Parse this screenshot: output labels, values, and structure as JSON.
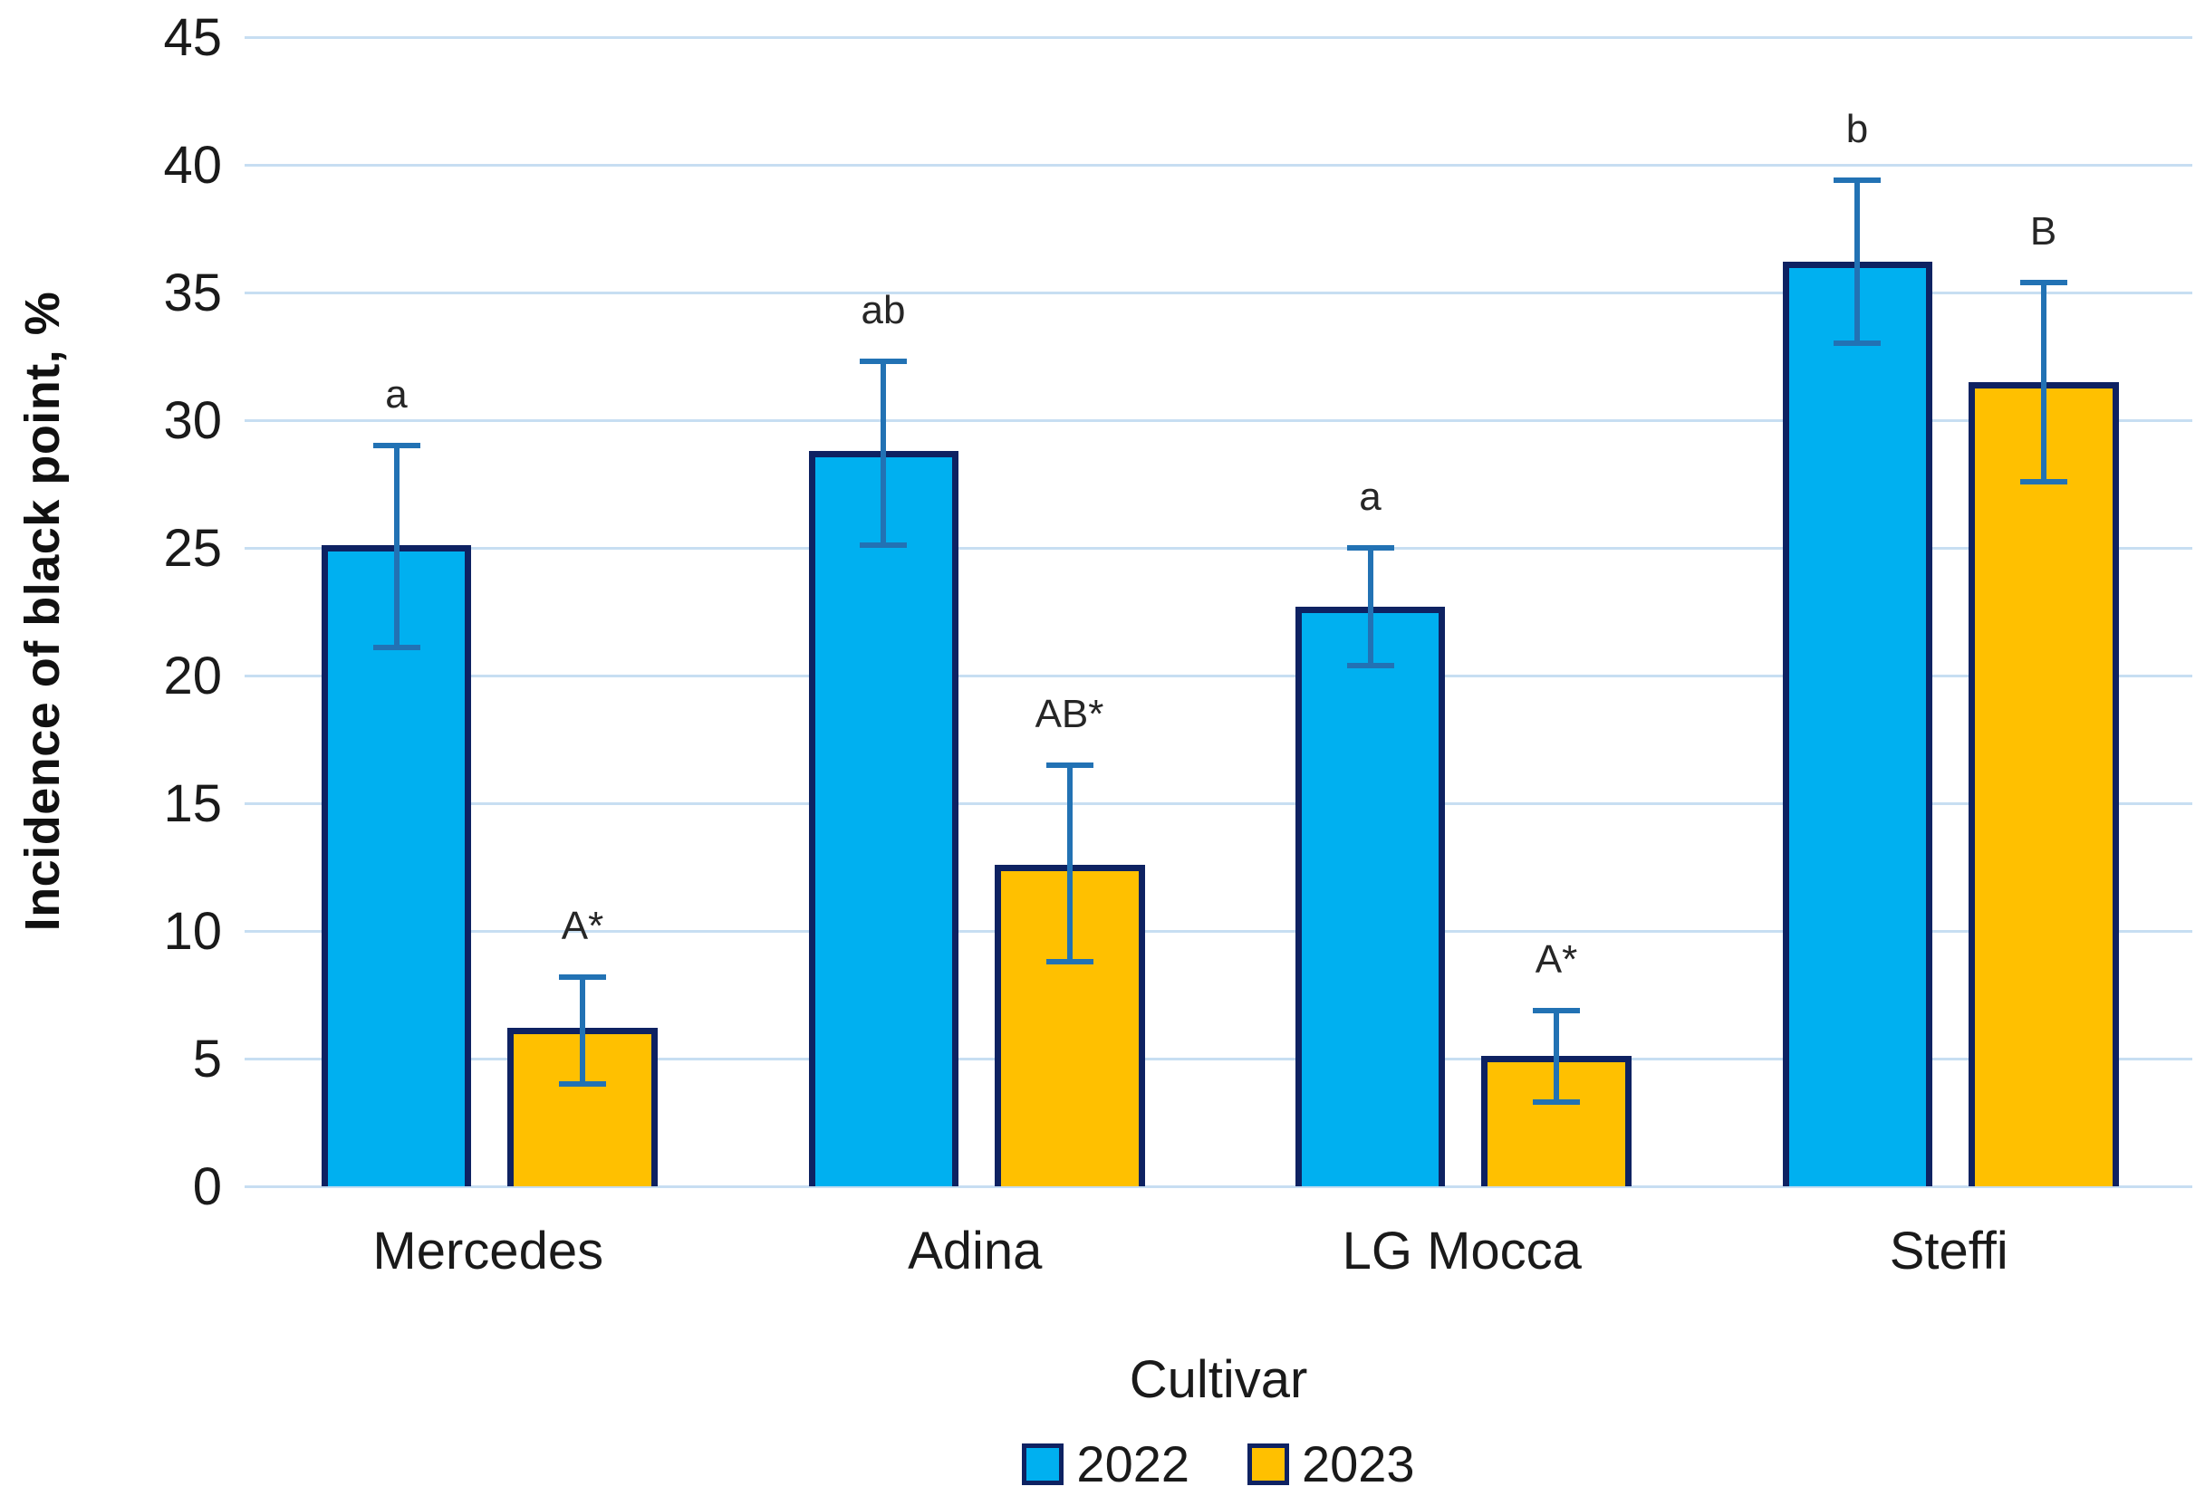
{
  "chart_data": {
    "type": "bar",
    "title": "",
    "xlabel": "Cultivar",
    "ylabel": "Incidence of black point, %",
    "ylim": [
      0,
      45
    ],
    "yticks": [
      0,
      5,
      10,
      15,
      20,
      25,
      30,
      35,
      40,
      45
    ],
    "grid": true,
    "legend_position": "bottom",
    "categories": [
      "Mercedes",
      "Adina",
      "LG Mocca",
      "Steffi"
    ],
    "series": [
      {
        "name": "2022",
        "color": "#00B0F0",
        "values": [
          25.1,
          28.8,
          22.7,
          36.2
        ],
        "error_low": [
          21.0,
          25.0,
          20.3,
          32.9
        ],
        "error_high": [
          29.1,
          32.4,
          25.1,
          39.5
        ],
        "letters": [
          "a",
          "ab",
          "a",
          "b"
        ]
      },
      {
        "name": "2023",
        "color": "#FFC000",
        "values": [
          6.2,
          12.6,
          5.1,
          31.5
        ],
        "error_low": [
          3.9,
          8.7,
          3.2,
          27.5
        ],
        "error_high": [
          8.3,
          16.6,
          7.0,
          35.5
        ],
        "letters": [
          "A*",
          "AB*",
          "A*",
          "B"
        ]
      }
    ],
    "colors": {
      "bar_border": "#0E2262",
      "error_bar": "#2272B4",
      "gridline": "#C7DEF2",
      "text": "#1A1A1A"
    }
  }
}
